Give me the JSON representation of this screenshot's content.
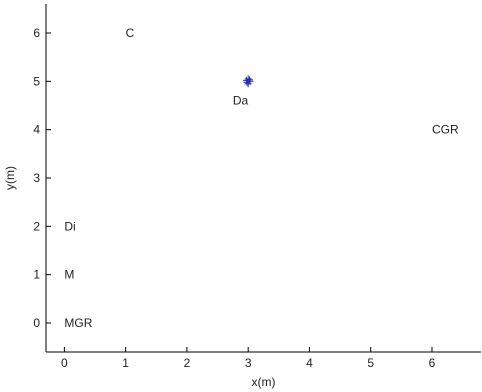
{
  "chart_data": {
    "type": "scatter",
    "title": "",
    "xlabel": "x(m)",
    "ylabel": "y(m)",
    "xlim": [
      -0.3,
      6.8
    ],
    "ylim": [
      -0.6,
      6.6
    ],
    "grid": false,
    "xticks": [
      0,
      1,
      2,
      3,
      4,
      5,
      6
    ],
    "yticks": [
      0,
      1,
      2,
      3,
      4,
      5,
      6
    ],
    "labels": [
      {
        "text": "C",
        "x": 1.0,
        "y": 6.0
      },
      {
        "text": "Da",
        "x": 2.75,
        "y": 4.6
      },
      {
        "text": "CGR",
        "x": 6.0,
        "y": 4.0
      },
      {
        "text": "Di",
        "x": 0.0,
        "y": 2.0
      },
      {
        "text": "M",
        "x": 0.0,
        "y": 1.0
      },
      {
        "text": "MGR",
        "x": 0.0,
        "y": 0.0
      }
    ],
    "points": [
      {
        "x": 2.97,
        "y": 5.02
      },
      {
        "x": 3.0,
        "y": 5.05
      },
      {
        "x": 3.03,
        "y": 5.0
      },
      {
        "x": 3.0,
        "y": 4.95
      },
      {
        "x": 2.98,
        "y": 4.98
      },
      {
        "x": 3.02,
        "y": 5.03
      }
    ],
    "marker": "plus",
    "marker_color": "#1f2fb0"
  }
}
